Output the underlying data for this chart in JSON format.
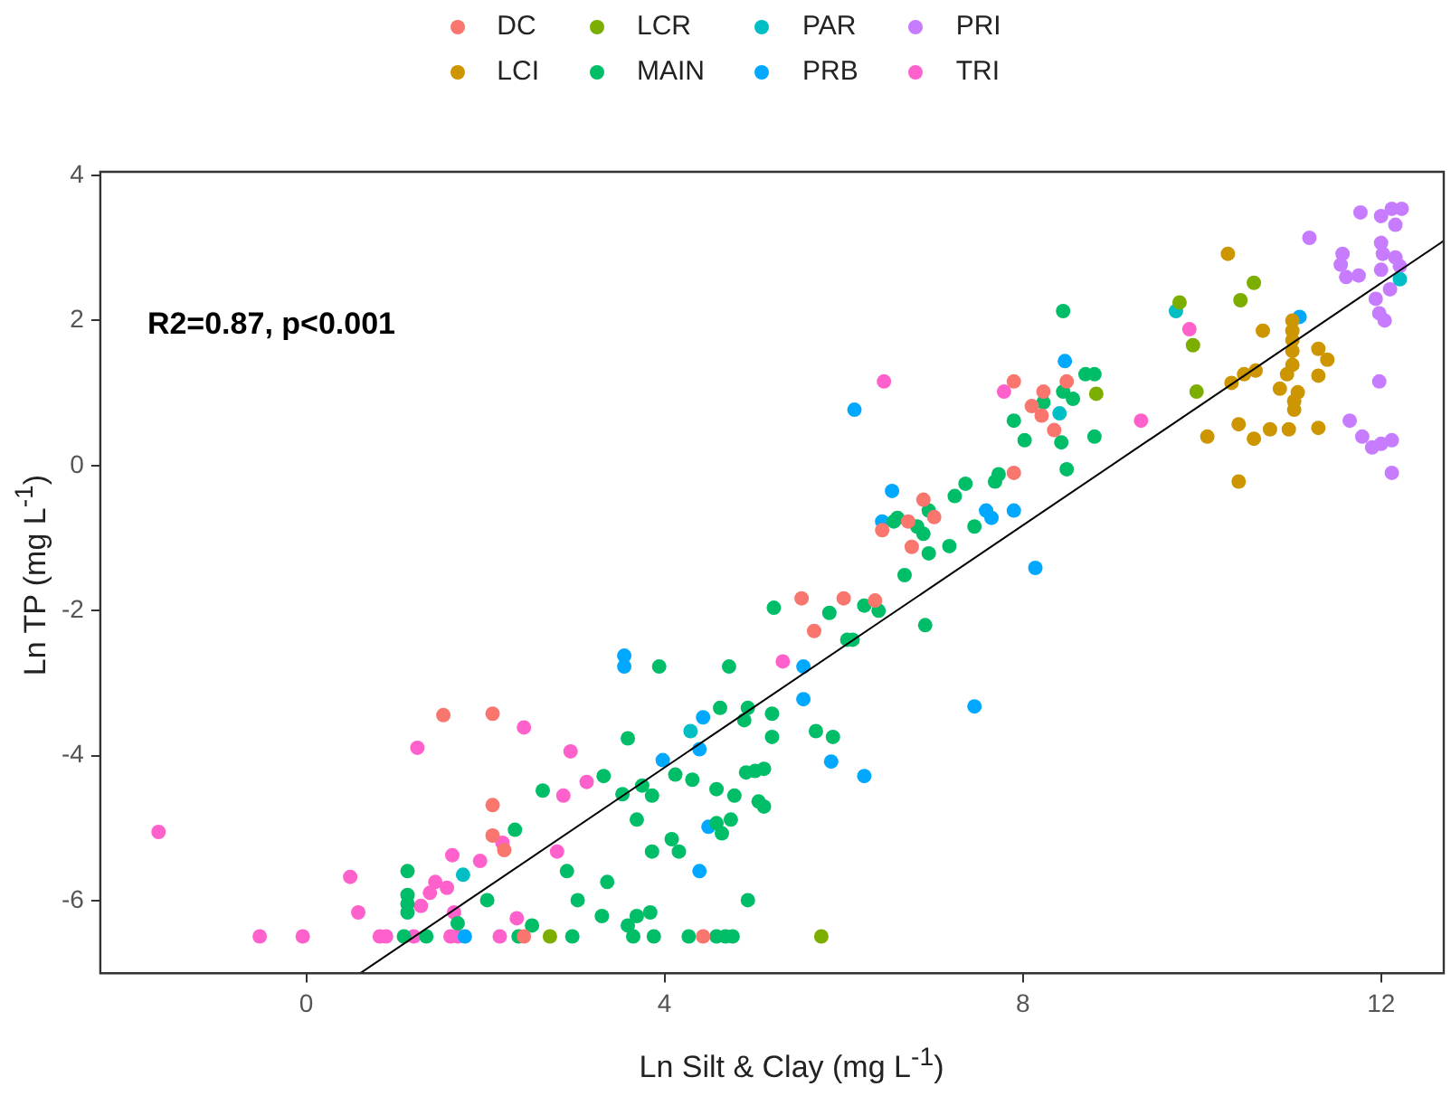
{
  "chart_data": {
    "type": "scatter",
    "xlabel": "Ln Silt & Clay (mg L$^{-1}$)",
    "ylabel": "Ln TP (mg L$^{-1}$)",
    "xlim": [
      -2.3,
      12.7
    ],
    "ylim": [
      -7,
      4.05
    ],
    "xticks": [
      0,
      4,
      8,
      12
    ],
    "yticks": [
      -6,
      -4,
      -2,
      0,
      2,
      4
    ],
    "grid": false,
    "legend": "top",
    "marker": "circle",
    "annotations": [
      "R2=0.87, p<0.001"
    ],
    "series": [
      {
        "name": "DC",
        "color": "#f8766d",
        "x": [
          1.53,
          2.08,
          2.08,
          2.08,
          2.21,
          5.53,
          5.67,
          6.0,
          2.43,
          4.43,
          6.35,
          6.43,
          6.72,
          6.89,
          7.01,
          6.76,
          7.9,
          7.9,
          8.23,
          8.1,
          8.21,
          8.35,
          8.49
        ],
        "values": [
          -3.44,
          -3.42,
          -4.68,
          -5.1,
          -5.3,
          -1.83,
          -2.28,
          -1.83,
          -6.49,
          -6.49,
          -1.86,
          -0.89,
          -0.77,
          -0.47,
          -0.71,
          -1.12,
          -0.1,
          1.16,
          1.02,
          0.82,
          0.69,
          0.49,
          1.16
        ]
      },
      {
        "name": "LCI",
        "color": "#cd9600",
        "x": [
          10.29,
          10.68,
          11.01,
          11.01,
          11.01,
          11.01,
          11.01,
          10.95,
          11.3,
          11.4,
          11.3,
          10.6,
          10.47,
          10.33,
          10.87,
          11.07,
          11.03,
          11.03,
          10.41,
          10.06,
          10.58,
          10.76,
          10.97,
          11.3,
          10.41
        ],
        "values": [
          2.92,
          1.86,
          2.0,
          1.86,
          1.73,
          1.58,
          1.39,
          1.26,
          1.61,
          1.46,
          1.24,
          1.31,
          1.26,
          1.14,
          1.06,
          1.01,
          0.89,
          0.77,
          0.57,
          0.4,
          0.37,
          0.5,
          0.5,
          0.52,
          -0.22
        ]
      },
      {
        "name": "LCR",
        "color": "#7cae00",
        "x": [
          2.72,
          5.75,
          8.82,
          9.75,
          10.58,
          10.43,
          9.9,
          9.94
        ],
        "values": [
          -6.49,
          -6.49,
          0.99,
          2.25,
          2.52,
          2.28,
          1.66,
          1.02
        ]
      },
      {
        "name": "MAIN",
        "color": "#00be67",
        "x": [
          1.13,
          1.13,
          1.13,
          1.13,
          1.09,
          1.34,
          1.69,
          5.22,
          5.84,
          6.04,
          3.94,
          4.72,
          4.62,
          4.93,
          4.89,
          5.2,
          5.2,
          5.69,
          5.88,
          3.59,
          3.32,
          2.64,
          3.53,
          3.75,
          3.86,
          4.12,
          4.31,
          4.58,
          4.78,
          4.91,
          5.01,
          5.11,
          5.05,
          5.11,
          3.69,
          4.08,
          4.16,
          3.86,
          4.58,
          4.64,
          4.74,
          2.33,
          2.91,
          3.36,
          2.02,
          3.03,
          3.3,
          3.69,
          3.84,
          3.59,
          4.93,
          2.52,
          2.37,
          2.97,
          3.65,
          3.88,
          4.27,
          4.58,
          4.68,
          4.76,
          6.23,
          6.39,
          6.1,
          6.91,
          6.68,
          6.95,
          7.18,
          6.89,
          6.82,
          6.95,
          6.6,
          6.56,
          7.24,
          7.36,
          7.46,
          7.69,
          7.73,
          7.9,
          8.02,
          8.23,
          8.45,
          8.56,
          8.43,
          8.49,
          8.7,
          8.8,
          8.8,
          8.45
        ],
        "values": [
          -5.59,
          -5.92,
          -6.04,
          -6.16,
          -6.49,
          -6.49,
          -6.31,
          -1.96,
          -2.03,
          -2.4,
          -2.77,
          -2.77,
          -3.34,
          -3.34,
          -3.51,
          -3.42,
          -3.74,
          -3.66,
          -3.74,
          -3.76,
          -4.28,
          -4.48,
          -4.53,
          -4.41,
          -4.55,
          -4.26,
          -4.33,
          -4.46,
          -4.55,
          -4.23,
          -4.21,
          -4.18,
          -4.63,
          -4.7,
          -4.88,
          -5.15,
          -5.32,
          -5.32,
          -4.93,
          -5.07,
          -4.88,
          -5.02,
          -5.59,
          -5.74,
          -5.99,
          -5.99,
          -6.21,
          -6.21,
          -6.16,
          -6.34,
          -5.99,
          -6.34,
          -6.49,
          -6.49,
          -6.49,
          -6.49,
          -6.49,
          -6.49,
          -6.49,
          -6.49,
          -1.93,
          -2.0,
          -2.4,
          -2.2,
          -1.51,
          -1.21,
          -1.11,
          -0.94,
          -0.84,
          -0.62,
          -0.72,
          -0.77,
          -0.42,
          -0.25,
          -0.84,
          -0.22,
          -0.12,
          0.62,
          0.35,
          0.87,
          1.02,
          0.92,
          0.32,
          -0.05,
          1.26,
          1.26,
          0.4,
          2.13
        ]
      },
      {
        "name": "PAR",
        "color": "#00bfc4",
        "x": [
          1.75,
          4.29,
          8.41,
          9.71,
          12.21
        ],
        "values": [
          -5.64,
          -3.66,
          0.72,
          2.13,
          2.57
        ]
      },
      {
        "name": "PRB",
        "color": "#00a9ff",
        "x": [
          3.55,
          3.55,
          4.43,
          4.39,
          3.98,
          4.49,
          4.39,
          5.55,
          5.55,
          5.86,
          1.77,
          6.12,
          6.54,
          6.43,
          7.59,
          7.65,
          7.9,
          8.14,
          7.46,
          8.47,
          6.23,
          11.09
        ],
        "values": [
          -2.62,
          -2.77,
          -3.47,
          -3.91,
          -4.06,
          -4.98,
          -5.59,
          -2.77,
          -3.22,
          -4.08,
          -6.49,
          0.77,
          -0.35,
          -0.77,
          -0.62,
          -0.72,
          -0.62,
          -1.41,
          -3.32,
          1.44,
          -4.28,
          2.05
        ]
      },
      {
        "name": "PRI",
        "color": "#c77cff",
        "x": [
          11.77,
          12.0,
          12.12,
          12.23,
          12.16,
          11.2,
          12.0,
          12.02,
          11.57,
          11.55,
          12.16,
          12.21,
          12.0,
          11.75,
          11.61,
          12.1,
          11.94,
          11.98,
          12.04,
          11.98,
          11.65,
          11.79,
          11.9,
          12.0,
          12.12,
          12.12
        ],
        "values": [
          3.49,
          3.44,
          3.54,
          3.54,
          3.32,
          3.14,
          3.07,
          2.92,
          2.92,
          2.77,
          2.87,
          2.75,
          2.7,
          2.62,
          2.6,
          2.43,
          2.3,
          2.1,
          2.0,
          1.16,
          0.62,
          0.4,
          0.25,
          0.3,
          0.35,
          -0.1
        ]
      },
      {
        "name": "TRI",
        "color": "#ff61cc",
        "x": [
          -1.65,
          1.24,
          -0.52,
          -0.04,
          0.49,
          0.58,
          0.82,
          0.89,
          1.2,
          1.61,
          1.28,
          1.38,
          1.44,
          2.43,
          2.95,
          3.13,
          2.87,
          5.32,
          1.63,
          1.94,
          2.19,
          2.8,
          1.57,
          1.65,
          2.35,
          1.69,
          2.16,
          6.45,
          7.79,
          9.32,
          9.86
        ],
        "values": [
          -5.05,
          -3.89,
          -6.49,
          -6.49,
          -5.67,
          -6.16,
          -6.49,
          -6.49,
          -6.49,
          -6.49,
          -6.07,
          -5.89,
          -5.74,
          -3.61,
          -3.94,
          -4.36,
          -4.55,
          -2.7,
          -5.37,
          -5.45,
          -5.2,
          -5.32,
          -5.82,
          -6.16,
          -6.24,
          -6.49,
          -6.49,
          1.16,
          1.02,
          0.62,
          1.88
        ]
      },
      {
        "type": "line",
        "color": "#000000",
        "marker": "none",
        "x": [
          0.6,
          12.7
        ],
        "values": [
          -7.0,
          3.1
        ]
      }
    ]
  }
}
